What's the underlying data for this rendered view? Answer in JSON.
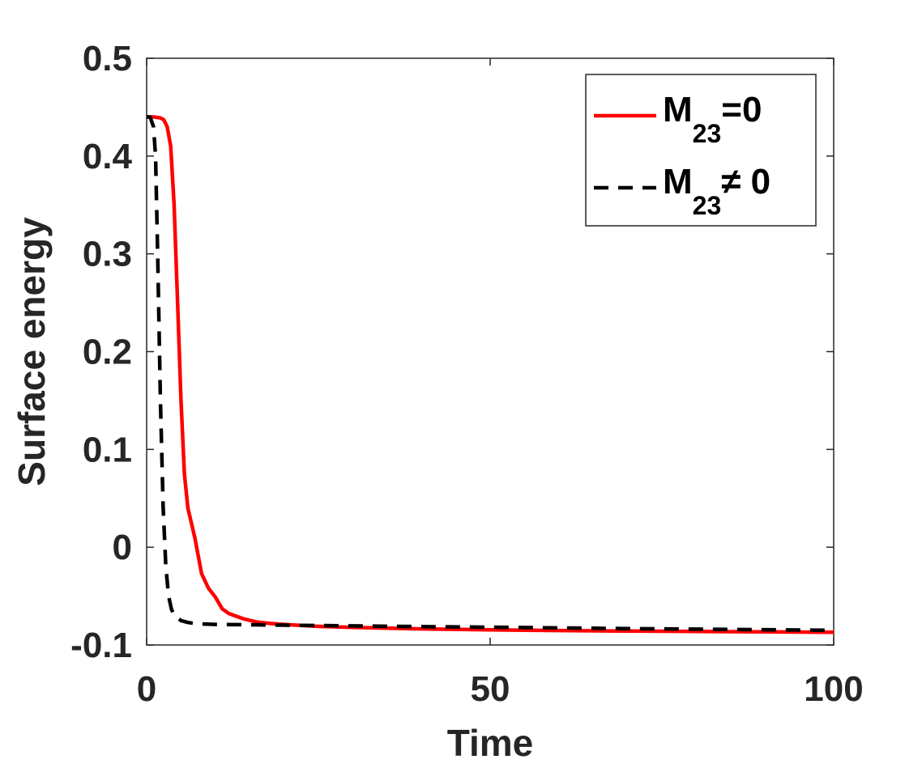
{
  "chart_data": {
    "type": "line",
    "title": "",
    "xlabel": "Time",
    "ylabel": "Surface energy",
    "xlim": [
      0,
      100
    ],
    "ylim": [
      -0.1,
      0.5
    ],
    "xticks": [
      0,
      50,
      100
    ],
    "xtick_labels": [
      "0",
      "50",
      "100"
    ],
    "yticks": [
      -0.1,
      0,
      0.1,
      0.2,
      0.3,
      0.4,
      0.5
    ],
    "ytick_labels": [
      "-0.1",
      "0",
      "0.1",
      "0.2",
      "0.3",
      "0.4",
      "0.5"
    ],
    "grid": false,
    "legend_position": "top-right",
    "series": [
      {
        "name": "M23=0",
        "label_main": "M",
        "label_sub": "23",
        "label_rest": "=0",
        "color": "#ff0000",
        "style": "solid",
        "x": [
          0,
          1,
          2,
          2.5,
          3,
          3.5,
          4,
          4.5,
          5,
          5.5,
          6,
          7,
          8,
          9,
          10,
          11,
          12,
          14,
          16,
          18,
          20,
          25,
          30,
          40,
          50,
          60,
          70,
          80,
          90,
          100
        ],
        "y": [
          0.44,
          0.44,
          0.439,
          0.437,
          0.43,
          0.41,
          0.35,
          0.25,
          0.15,
          0.075,
          0.04,
          0.01,
          -0.027,
          -0.042,
          -0.051,
          -0.063,
          -0.068,
          -0.073,
          -0.0765,
          -0.078,
          -0.079,
          -0.081,
          -0.082,
          -0.0835,
          -0.0845,
          -0.0852,
          -0.0858,
          -0.0862,
          -0.0866,
          -0.087
        ]
      },
      {
        "name": "M23≠ 0",
        "label_main": "M",
        "label_sub": "23",
        "label_rest": "≠ 0",
        "color": "#000000",
        "style": "dashed",
        "x": [
          0,
          0.5,
          1,
          1.3,
          1.6,
          2,
          2.4,
          2.8,
          3.2,
          3.6,
          4,
          5,
          6,
          7,
          8,
          10,
          15,
          20,
          30,
          40,
          50,
          60,
          70,
          80,
          90,
          100
        ],
        "y": [
          0.44,
          0.44,
          0.43,
          0.4,
          0.3,
          0.15,
          0.04,
          -0.02,
          -0.05,
          -0.063,
          -0.07,
          -0.075,
          -0.077,
          -0.078,
          -0.0785,
          -0.079,
          -0.0793,
          -0.0797,
          -0.0805,
          -0.0812,
          -0.0818,
          -0.0825,
          -0.0832,
          -0.0838,
          -0.0844,
          -0.085
        ]
      }
    ]
  }
}
